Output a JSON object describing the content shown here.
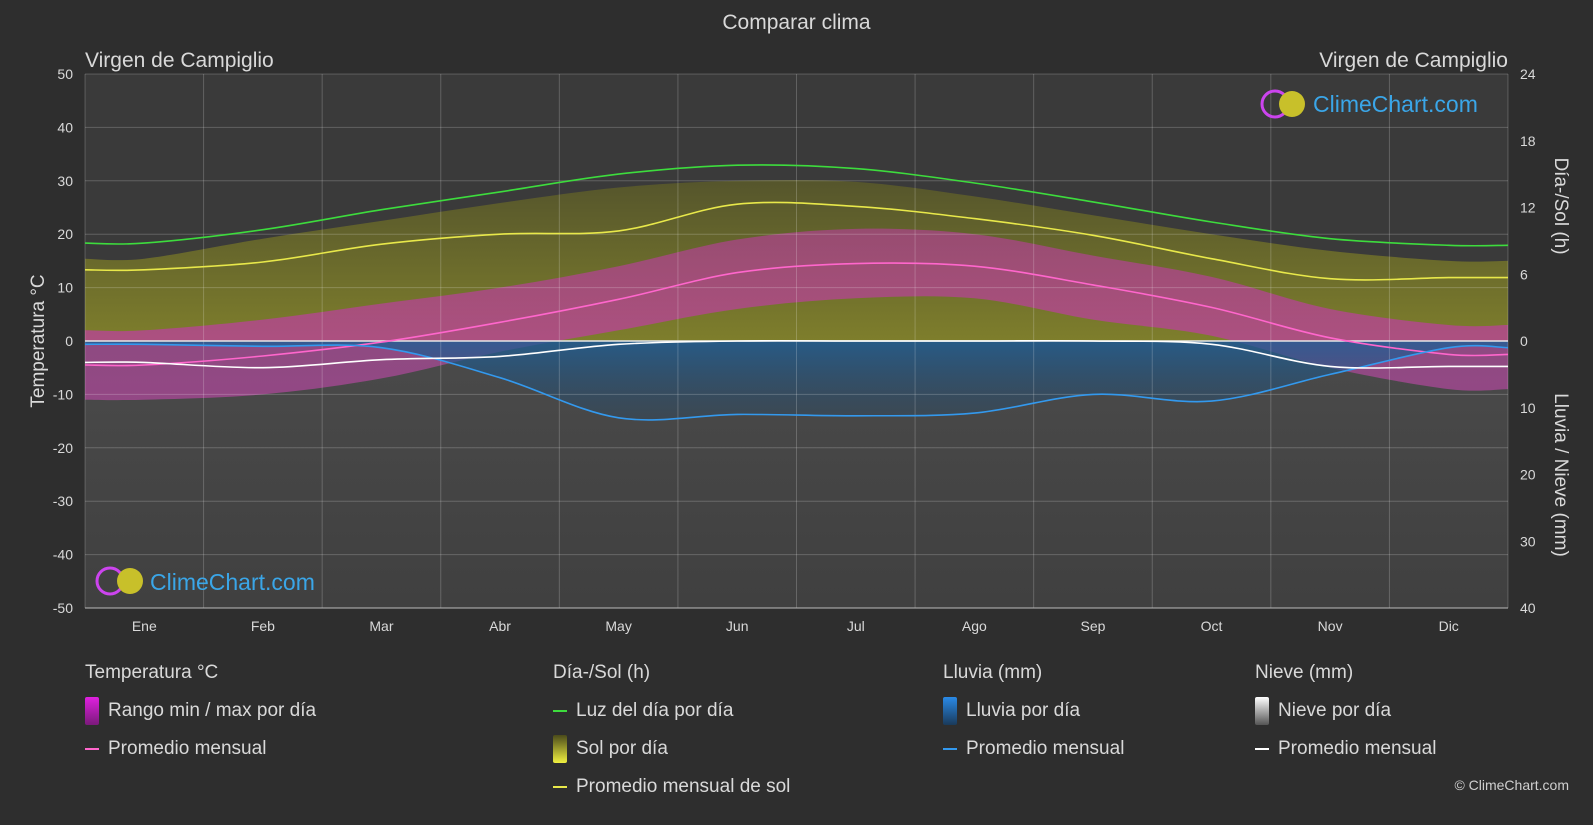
{
  "chart_data": {
    "type": "area",
    "title": "Comparar clima",
    "location_left": "Virgen de Campiglio",
    "location_right": "Virgen de Campiglio",
    "left_axis": {
      "label": "Temperatura °C",
      "min": -50,
      "max": 50,
      "ticks": [
        50,
        40,
        30,
        20,
        10,
        0,
        -10,
        -20,
        -30,
        -40,
        -50
      ]
    },
    "right_axis_top": {
      "label": "Día-/Sol (h)",
      "min": 0,
      "max": 24,
      "ticks": [
        24,
        18,
        12,
        6,
        0
      ]
    },
    "right_axis_bottom": {
      "label": "Lluvia / Nieve (mm)",
      "min": 0,
      "max": 40,
      "ticks": [
        10,
        20,
        30,
        40
      ]
    },
    "months": [
      "Ene",
      "Feb",
      "Mar",
      "Abr",
      "May",
      "Jun",
      "Jul",
      "Ago",
      "Sep",
      "Oct",
      "Nov",
      "Dic"
    ],
    "series": [
      {
        "name": "Luz del día por día",
        "unit": "h",
        "color": "#3ddc3d",
        "values": [
          8.8,
          10.0,
          11.8,
          13.4,
          15.0,
          15.8,
          15.5,
          14.2,
          12.5,
          10.7,
          9.2,
          8.6
        ]
      },
      {
        "name": "Promedio mensual de sol",
        "unit": "h",
        "color": "#e8e84a",
        "values": [
          6.4,
          7.1,
          8.7,
          9.6,
          9.9,
          12.3,
          12.1,
          11.0,
          9.5,
          7.4,
          5.6,
          5.7
        ]
      },
      {
        "name": "Sol por día",
        "unit": "h",
        "values": [
          7.4,
          9.2,
          10.8,
          12.4,
          13.8,
          14.4,
          14.3,
          13.0,
          11.3,
          9.6,
          8.1,
          7.2
        ]
      },
      {
        "name": "Temperatura promedio mensual",
        "unit": "°C",
        "color": "#ff66cc",
        "values": [
          -4.5,
          -2.8,
          -0.2,
          3.5,
          7.8,
          12.8,
          14.5,
          14.0,
          10.5,
          6.3,
          0.6,
          -2.5
        ]
      },
      {
        "name": "Rango min / max por día",
        "unit": "°C",
        "min": [
          -11,
          -10,
          -7,
          -2,
          2,
          6,
          8,
          8,
          4,
          1,
          -5,
          -9
        ],
        "max": [
          2,
          4,
          7,
          10,
          14,
          19,
          21,
          20,
          16,
          12,
          6,
          3
        ]
      },
      {
        "name": "Lluvia promedio mensual",
        "unit": "mm",
        "color": "#3399ee",
        "values": [
          0.5,
          0.8,
          1.0,
          5.5,
          11.5,
          11.0,
          11.2,
          10.8,
          8.0,
          9.0,
          5.0,
          1.0
        ]
      },
      {
        "name": "Nieve promedio mensual",
        "unit": "mm",
        "color": "#ffffff",
        "values": [
          3.2,
          4.0,
          2.8,
          2.3,
          0.5,
          0.0,
          0.0,
          0.0,
          0.0,
          0.5,
          3.8,
          3.8
        ]
      }
    ],
    "grid": true,
    "watermark": "ClimeChart.com"
  },
  "legend": {
    "groups": [
      {
        "title": "Temperatura °C",
        "items": [
          {
            "type": "bar",
            "label": "Rango min / max por día",
            "color": "#e020e0"
          },
          {
            "type": "line",
            "label": "Promedio mensual",
            "color": "#ff66cc"
          }
        ]
      },
      {
        "title": "Día-/Sol (h)",
        "items": [
          {
            "type": "line",
            "label": "Luz del día por día",
            "color": "#3ddc3d"
          },
          {
            "type": "bar",
            "label": "Sol por día",
            "color": "#d8d830"
          },
          {
            "type": "line",
            "label": "Promedio mensual de sol",
            "color": "#e8e84a"
          }
        ]
      },
      {
        "title": "Lluvia (mm)",
        "items": [
          {
            "type": "bar",
            "label": "Lluvia por día",
            "color": "#2a7fd4"
          },
          {
            "type": "line",
            "label": "Promedio mensual",
            "color": "#3399ee"
          }
        ]
      },
      {
        "title": "Nieve (mm)",
        "items": [
          {
            "type": "bar",
            "label": "Nieve por día",
            "color": "#e8e8e8"
          },
          {
            "type": "line",
            "label": "Promedio mensual",
            "color": "#ffffff"
          }
        ]
      }
    ]
  },
  "copyright": "© ClimeChart.com"
}
